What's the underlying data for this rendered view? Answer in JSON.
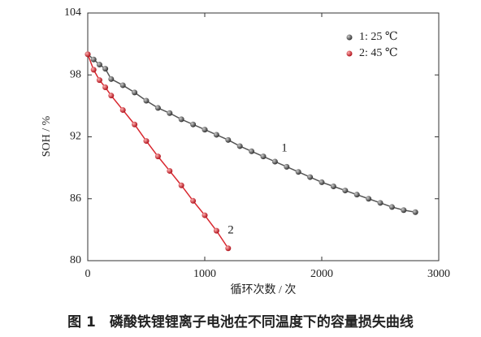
{
  "chart_data": {
    "type": "scatter",
    "xlabel": "循环次数 / 次",
    "ylabel": "SOH / %",
    "caption": "图 1　磷酸铁锂锂离子电池在不同温度下的容量损失曲线",
    "annotations": [
      "1",
      "2"
    ],
    "xlim": [
      0,
      3000
    ],
    "xticks": [
      0,
      1000,
      2000,
      3000
    ],
    "ylim": [
      80,
      104
    ],
    "yticks": [
      80,
      86,
      92,
      98,
      104
    ],
    "legend": "upper right",
    "series": [
      {
        "name": "1: 25 ℃",
        "color": "#555555",
        "x": [
          0,
          50,
          100,
          150,
          200,
          300,
          400,
          500,
          600,
          700,
          800,
          900,
          1000,
          1100,
          1200,
          1300,
          1400,
          1500,
          1600,
          1700,
          1800,
          1900,
          2000,
          2100,
          2200,
          2300,
          2400,
          2500,
          2600,
          2700,
          2800
        ],
        "values": [
          100,
          99.5,
          99,
          98.6,
          97.6,
          97,
          96.3,
          95.5,
          94.8,
          94.3,
          93.7,
          93.2,
          92.7,
          92.2,
          91.7,
          91.1,
          90.6,
          90.1,
          89.6,
          89.1,
          88.6,
          88.1,
          87.6,
          87.2,
          86.8,
          86.4,
          86,
          85.6,
          85.2,
          84.9,
          84.7
        ]
      },
      {
        "name": "2: 45 ℃",
        "color": "#d8262e",
        "x": [
          0,
          50,
          100,
          150,
          200,
          300,
          400,
          500,
          600,
          700,
          800,
          900,
          1000,
          1100,
          1200
        ],
        "values": [
          100,
          98.5,
          97.5,
          96.8,
          96,
          94.6,
          93.2,
          91.6,
          90.1,
          88.7,
          87.3,
          85.8,
          84.4,
          82.9,
          81.2
        ]
      }
    ]
  }
}
